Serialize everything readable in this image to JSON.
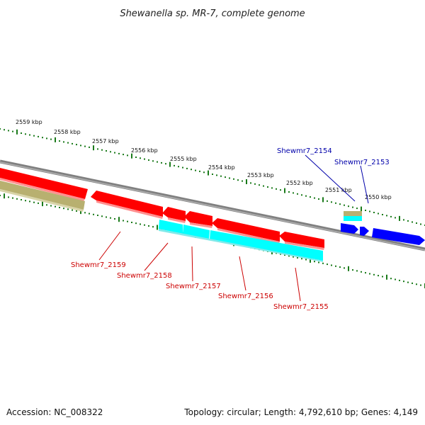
{
  "title": "Shewanella sp. MR-7, complete genome",
  "accession": "Accession: NC_008322",
  "topology": "Topology: circular; Length: 4,792,610 bp; Genes: 4,149",
  "colors": {
    "cds": "#ff0000",
    "gene": "#b8b070",
    "rna": "#00ffff",
    "highlight": "#0000ff",
    "backbone": "#808080",
    "tick": "#1a7a1a",
    "label_red": "#cc0000",
    "label_blue": "#0000aa"
  },
  "kbp_labels": [
    "2559 kbp",
    "2558 kbp",
    "2557 kbp",
    "2556 kbp",
    "2555 kbp",
    "2554 kbp",
    "2553 kbp",
    "2552 kbp",
    "2551 kbp",
    "2550 kbp"
  ],
  "gene_labels": [
    {
      "text": "Shewmr7_2159",
      "color": "red"
    },
    {
      "text": "Shewmr7_2158",
      "color": "red"
    },
    {
      "text": "Shewmr7_2157",
      "color": "red"
    },
    {
      "text": "Shewmr7_2156",
      "color": "red"
    },
    {
      "text": "Shewmr7_2155",
      "color": "red"
    },
    {
      "text": "Shewmr7_2154",
      "color": "blue"
    },
    {
      "text": "Shewmr7_2153",
      "color": "blue"
    }
  ]
}
